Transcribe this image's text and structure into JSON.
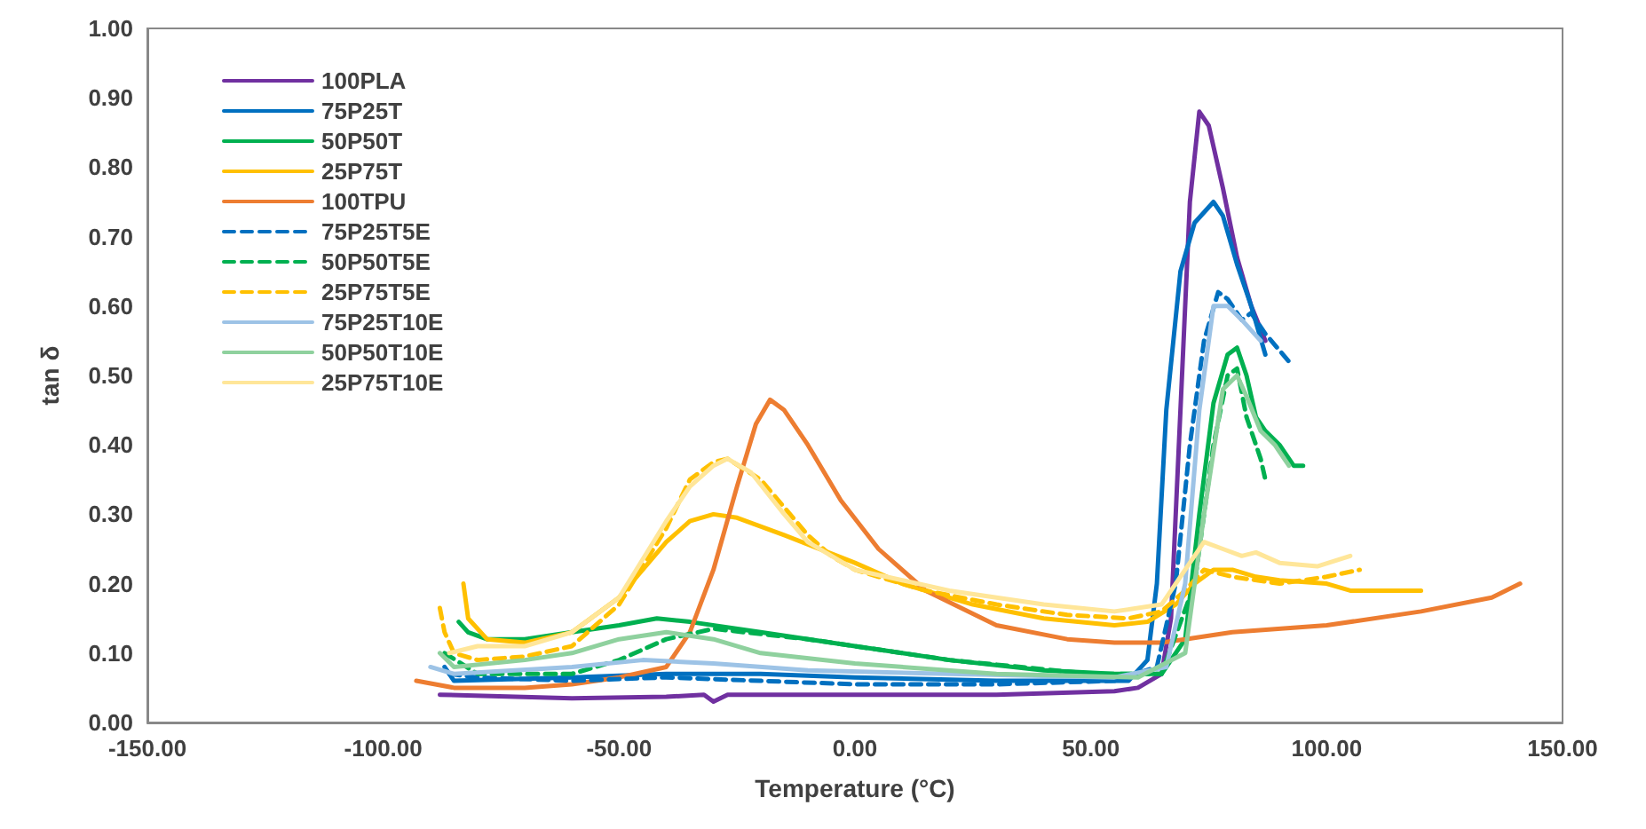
{
  "chart_data": {
    "type": "line",
    "xlabel": "Temperature (°C)",
    "ylabel": "tan δ",
    "xlim": [
      -150,
      150
    ],
    "xticks": [
      {
        "value": -150,
        "label": "-150.00"
      },
      {
        "value": -100,
        "label": "-100.00"
      },
      {
        "value": -50,
        "label": "-50.00"
      },
      {
        "value": 0,
        "label": "0.00"
      },
      {
        "value": 50,
        "label": "50.00"
      },
      {
        "value": 100,
        "label": "100.00"
      },
      {
        "value": 150,
        "label": "150.00"
      }
    ],
    "ylim": [
      0,
      1
    ],
    "yticks": [
      {
        "value": 0,
        "label": "0.00"
      },
      {
        "value": 0.1,
        "label": "0.10"
      },
      {
        "value": 0.2,
        "label": "0.20"
      },
      {
        "value": 0.3,
        "label": "0.30"
      },
      {
        "value": 0.4,
        "label": "0.40"
      },
      {
        "value": 0.5,
        "label": "0.50"
      },
      {
        "value": 0.6,
        "label": "0.60"
      },
      {
        "value": 0.7,
        "label": "0.70"
      },
      {
        "value": 0.8,
        "label": "0.80"
      },
      {
        "value": 0.9,
        "label": "0.90"
      },
      {
        "value": 1,
        "label": "1.00"
      }
    ],
    "grid": false,
    "legend": "top left",
    "marker": "none",
    "series": [
      {
        "name": "100PLA",
        "color": "#7030a0",
        "line_style": "solid",
        "x": [
          -88,
          -60,
          -40,
          -32,
          -30,
          -27,
          0,
          30,
          55,
          60,
          65,
          67,
          69,
          71,
          73,
          75,
          78,
          81,
          84,
          87
        ],
        "values": [
          0.04,
          0.035,
          0.037,
          0.04,
          0.03,
          0.04,
          0.04,
          0.04,
          0.045,
          0.05,
          0.07,
          0.15,
          0.45,
          0.75,
          0.88,
          0.86,
          0.77,
          0.67,
          0.6,
          0.55
        ]
      },
      {
        "name": "75P25T",
        "color": "#0070c0",
        "line_style": "solid",
        "x": [
          -87,
          -85,
          -60,
          -40,
          -20,
          0,
          30,
          55,
          58,
          62,
          64,
          66,
          69,
          72,
          76,
          78,
          81,
          84,
          87
        ],
        "values": [
          0.08,
          0.06,
          0.065,
          0.07,
          0.07,
          0.065,
          0.06,
          0.06,
          0.06,
          0.09,
          0.2,
          0.45,
          0.65,
          0.72,
          0.75,
          0.73,
          0.66,
          0.6,
          0.53
        ]
      },
      {
        "name": "50P50T",
        "color": "#00b050",
        "line_style": "solid",
        "x": [
          -84,
          -82,
          -78,
          -70,
          -60,
          -50,
          -42,
          -35,
          -20,
          0,
          20,
          40,
          55,
          65,
          70,
          73,
          76,
          79,
          81,
          83,
          85,
          87,
          90,
          93,
          95
        ],
        "values": [
          0.145,
          0.13,
          0.12,
          0.12,
          0.13,
          0.14,
          0.15,
          0.145,
          0.13,
          0.11,
          0.09,
          0.075,
          0.07,
          0.07,
          0.12,
          0.3,
          0.46,
          0.53,
          0.54,
          0.5,
          0.44,
          0.42,
          0.4,
          0.37,
          0.37
        ]
      },
      {
        "name": "25P75T",
        "color": "#ffc000",
        "line_style": "solid",
        "x": [
          -83,
          -82,
          -78,
          -70,
          -60,
          -50,
          -40,
          -35,
          -30,
          -25,
          -15,
          0,
          10,
          25,
          40,
          55,
          62,
          68,
          72,
          76,
          80,
          85,
          90,
          100,
          105,
          120
        ],
        "values": [
          0.2,
          0.15,
          0.12,
          0.115,
          0.13,
          0.18,
          0.26,
          0.29,
          0.3,
          0.295,
          0.27,
          0.23,
          0.2,
          0.17,
          0.15,
          0.14,
          0.145,
          0.17,
          0.2,
          0.22,
          0.22,
          0.21,
          0.205,
          0.2,
          0.19,
          0.19
        ]
      },
      {
        "name": "100TPU",
        "color": "#ed7d31",
        "line_style": "solid",
        "x": [
          -93,
          -85,
          -70,
          -60,
          -50,
          -40,
          -35,
          -30,
          -25,
          -21,
          -18,
          -15,
          -10,
          -3,
          5,
          15,
          30,
          45,
          55,
          65,
          70,
          80,
          100,
          120,
          135,
          141
        ],
        "values": [
          0.06,
          0.05,
          0.05,
          0.055,
          0.065,
          0.08,
          0.13,
          0.22,
          0.34,
          0.43,
          0.465,
          0.45,
          0.4,
          0.32,
          0.25,
          0.19,
          0.14,
          0.12,
          0.115,
          0.115,
          0.12,
          0.13,
          0.14,
          0.16,
          0.18,
          0.2
        ]
      },
      {
        "name": "75P25T5E",
        "color": "#0070c0",
        "line_style": "dashed",
        "x": [
          -86,
          -80,
          -60,
          -40,
          -20,
          0,
          30,
          55,
          64,
          68,
          71,
          74,
          77,
          79,
          82,
          84,
          87,
          92
        ],
        "values": [
          0.07,
          0.065,
          0.06,
          0.065,
          0.06,
          0.055,
          0.055,
          0.06,
          0.08,
          0.2,
          0.4,
          0.55,
          0.62,
          0.61,
          0.58,
          0.59,
          0.56,
          0.52
        ]
      },
      {
        "name": "50P50T5E",
        "color": "#00b050",
        "line_style": "dashed",
        "x": [
          -87,
          -80,
          -60,
          -50,
          -40,
          -30,
          -10,
          20,
          50,
          65,
          72,
          76,
          79,
          81,
          83,
          86,
          87
        ],
        "values": [
          0.1,
          0.07,
          0.07,
          0.09,
          0.12,
          0.135,
          0.12,
          0.09,
          0.07,
          0.07,
          0.2,
          0.4,
          0.5,
          0.51,
          0.44,
          0.38,
          0.35
        ]
      },
      {
        "name": "25P75T5E",
        "color": "#ffc000",
        "line_style": "dashed",
        "x": [
          -88,
          -87,
          -85,
          -80,
          -70,
          -60,
          -50,
          -40,
          -35,
          -30,
          -27,
          -20,
          -15,
          -10,
          -5,
          0,
          15,
          30,
          45,
          58,
          65,
          70,
          74,
          80,
          90,
          100,
          107
        ],
        "values": [
          0.165,
          0.13,
          0.1,
          0.09,
          0.095,
          0.11,
          0.17,
          0.28,
          0.35,
          0.375,
          0.38,
          0.35,
          0.31,
          0.27,
          0.24,
          0.22,
          0.19,
          0.17,
          0.155,
          0.15,
          0.16,
          0.19,
          0.22,
          0.21,
          0.2,
          0.21,
          0.22
        ]
      },
      {
        "name": "75P25T10E",
        "color": "#9dc3e6",
        "line_style": "solid",
        "x": [
          -90,
          -85,
          -60,
          -45,
          -30,
          -10,
          20,
          55,
          66,
          70,
          73,
          76,
          79,
          82,
          86
        ],
        "values": [
          0.08,
          0.07,
          0.08,
          0.09,
          0.085,
          0.075,
          0.07,
          0.065,
          0.08,
          0.2,
          0.45,
          0.6,
          0.6,
          0.58,
          0.55
        ]
      },
      {
        "name": "50P50T10E",
        "color": "#8fd19e",
        "line_style": "solid",
        "x": [
          -88,
          -85,
          -70,
          -60,
          -50,
          -40,
          -30,
          -20,
          0,
          30,
          60,
          70,
          74,
          78,
          81,
          83,
          86,
          89,
          92
        ],
        "values": [
          0.1,
          0.08,
          0.09,
          0.1,
          0.12,
          0.13,
          0.12,
          0.1,
          0.085,
          0.07,
          0.065,
          0.1,
          0.3,
          0.48,
          0.5,
          0.47,
          0.42,
          0.4,
          0.37
        ]
      },
      {
        "name": "25P75T10E",
        "color": "#ffe699",
        "line_style": "solid",
        "x": [
          -86,
          -80,
          -70,
          -60,
          -50,
          -40,
          -35,
          -30,
          -27,
          -22,
          -15,
          -10,
          0,
          20,
          40,
          55,
          65,
          70,
          74,
          78,
          82,
          85,
          90,
          98,
          105
        ],
        "values": [
          0.1,
          0.11,
          0.11,
          0.13,
          0.18,
          0.29,
          0.34,
          0.37,
          0.38,
          0.36,
          0.3,
          0.26,
          0.22,
          0.19,
          0.17,
          0.16,
          0.17,
          0.22,
          0.26,
          0.25,
          0.24,
          0.245,
          0.23,
          0.225,
          0.24
        ]
      }
    ]
  }
}
